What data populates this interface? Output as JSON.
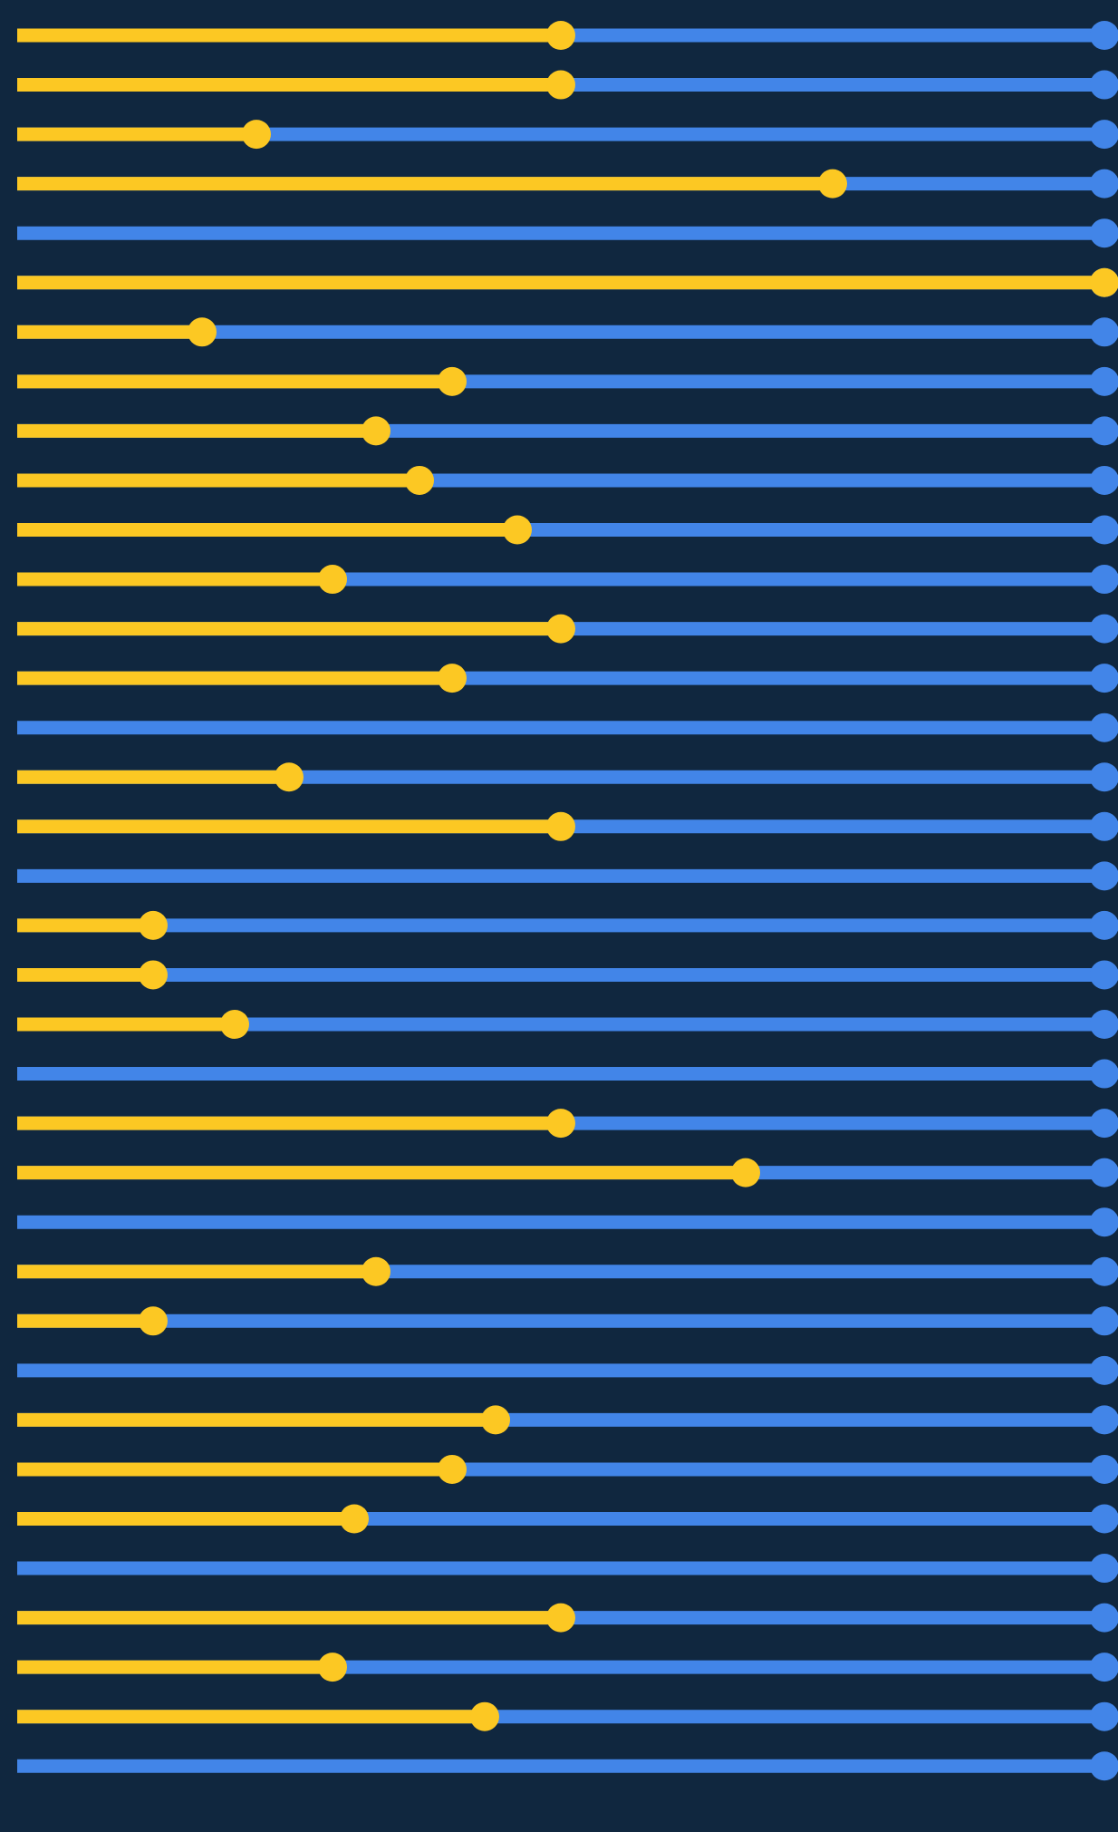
{
  "chart_data": {
    "type": "slider",
    "xlim": [
      0,
      100
    ],
    "fill_color": "#fcc823",
    "track_color": "#4285e8",
    "values": [
      50,
      50,
      22,
      75,
      0,
      100,
      17,
      40,
      33,
      37,
      46,
      29,
      50,
      40,
      0,
      25,
      50,
      0,
      12.5,
      12.5,
      20,
      0,
      50,
      67,
      0,
      33,
      12.5,
      0,
      44,
      40,
      31,
      0,
      50,
      29,
      43,
      0
    ]
  }
}
